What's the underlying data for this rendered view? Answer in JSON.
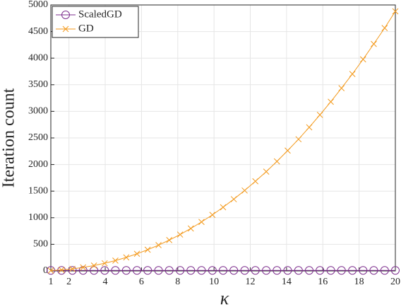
{
  "chart_data": {
    "type": "line",
    "xlabel": "κ",
    "ylabel": "Iteration count",
    "x": [
      1,
      1.59,
      2.19,
      2.78,
      3.38,
      3.97,
      4.56,
      5.16,
      5.75,
      6.34,
      6.94,
      7.53,
      8.13,
      8.72,
      9.31,
      9.91,
      10.5,
      11.09,
      11.69,
      12.28,
      12.88,
      13.47,
      14.06,
      14.66,
      15.25,
      15.84,
      16.44,
      17.03,
      17.63,
      18.22,
      18.81,
      19.41,
      20
    ],
    "series": [
      {
        "name": "ScaledGD",
        "color": "#7e2f8e",
        "marker": "circle",
        "values": [
          10,
          10,
          10,
          10,
          10,
          10,
          10,
          10,
          10,
          10,
          10,
          10,
          10,
          10,
          10,
          10,
          10,
          10,
          10,
          10,
          10,
          10,
          10,
          10,
          10,
          10,
          10,
          10,
          10,
          10,
          10,
          10,
          10
        ]
      },
      {
        "name": "GD",
        "color": "#f39a1e",
        "marker": "cross",
        "values": [
          7,
          20,
          39,
          66,
          101,
          144,
          195,
          254,
          322,
          399,
          485,
          580,
          684,
          798,
          921,
          1054,
          1197,
          1349,
          1512,
          1685,
          1867,
          2060,
          2262,
          2476,
          2700,
          2934,
          3180,
          3436,
          3702,
          3978,
          4267,
          4566,
          4880
        ]
      }
    ],
    "xlim": [
      1,
      20
    ],
    "xticks": [
      1,
      2,
      4,
      6,
      8,
      10,
      12,
      14,
      16,
      18,
      20
    ],
    "ylim": [
      0,
      5000
    ],
    "yticks": [
      0,
      500,
      1000,
      1500,
      2000,
      2500,
      3000,
      3500,
      4000,
      4500,
      5000
    ],
    "grid": true,
    "legend": "upper-left"
  }
}
